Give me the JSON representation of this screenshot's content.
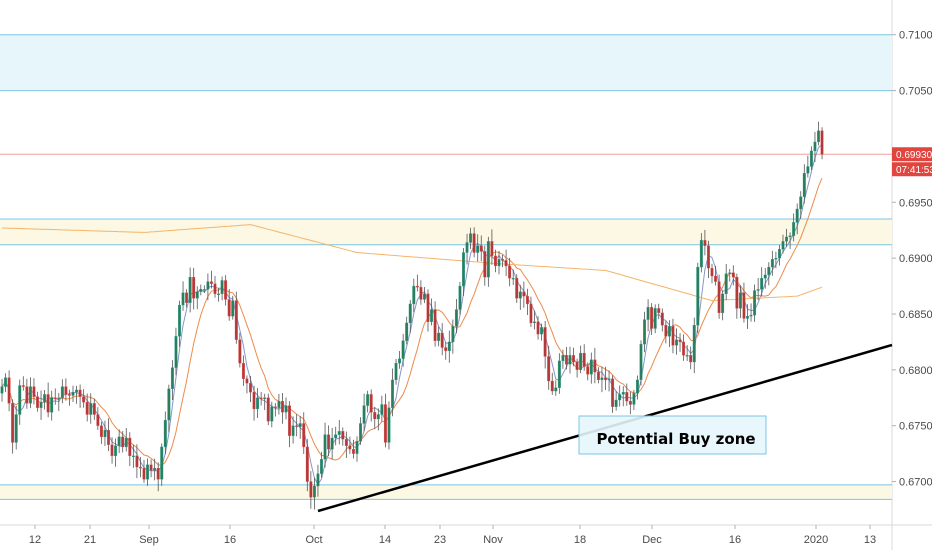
{
  "chart_data": {
    "type": "candlestick",
    "title": "",
    "xlabel": "",
    "ylabel": "",
    "ylim": [
      0.6662,
      0.7117
    ],
    "y_ticks": [
      "0.71000",
      "0.70500",
      "0.69930",
      "0.69500",
      "0.69000",
      "0.68500",
      "0.68000",
      "0.67500",
      "0.67000"
    ],
    "x_ticks": [
      "12",
      "21",
      "Sep",
      "16",
      "Oct",
      "14",
      "23",
      "Nov",
      "18",
      "Dec",
      "16",
      "2020",
      "13"
    ],
    "last_price": "0.69930",
    "countdown": "07:41:53",
    "annotation": "Potential Buy zone",
    "series_close": [
      0.6785,
      0.6793,
      0.677,
      0.6735,
      0.676,
      0.6786,
      0.6785,
      0.677,
      0.6785,
      0.6776,
      0.6766,
      0.6771,
      0.6778,
      0.6762,
      0.6775,
      0.6774,
      0.6775,
      0.6785,
      0.6778,
      0.6777,
      0.678,
      0.6782,
      0.6776,
      0.6771,
      0.676,
      0.677,
      0.676,
      0.675,
      0.674,
      0.6746,
      0.6733,
      0.6723,
      0.6732,
      0.674,
      0.6731,
      0.6739,
      0.6723,
      0.6723,
      0.6713,
      0.6712,
      0.6702,
      0.6715,
      0.671,
      0.6712,
      0.6702,
      0.6731,
      0.6755,
      0.6783,
      0.6802,
      0.683,
      0.6858,
      0.6869,
      0.686,
      0.6883,
      0.6864,
      0.687,
      0.6872,
      0.6872,
      0.6879,
      0.6877,
      0.6868,
      0.6868,
      0.688,
      0.6863,
      0.6848,
      0.6862,
      0.6827,
      0.6806,
      0.6792,
      0.6788,
      0.678,
      0.6765,
      0.6775,
      0.6774,
      0.6775,
      0.6754,
      0.6767,
      0.6766,
      0.6772,
      0.6762,
      0.6768,
      0.6741,
      0.675,
      0.6749,
      0.6752,
      0.6731,
      0.67,
      0.6686,
      0.6696,
      0.6707,
      0.672,
      0.6742,
      0.6729,
      0.6739,
      0.6742,
      0.6745,
      0.6738,
      0.6732,
      0.6729,
      0.6725,
      0.6736,
      0.6752,
      0.6768,
      0.6778,
      0.6762,
      0.6756,
      0.676,
      0.6769,
      0.6735,
      0.6766,
      0.6791,
      0.6806,
      0.681,
      0.6826,
      0.6842,
      0.6859,
      0.6875,
      0.6874,
      0.6863,
      0.6868,
      0.6843,
      0.6854,
      0.6826,
      0.6833,
      0.682,
      0.6817,
      0.6825,
      0.6839,
      0.6854,
      0.6875,
      0.6905,
      0.6914,
      0.6922,
      0.6905,
      0.6911,
      0.6906,
      0.6883,
      0.6915,
      0.6902,
      0.6893,
      0.6899,
      0.6898,
      0.6893,
      0.6882,
      0.6882,
      0.6864,
      0.687,
      0.6866,
      0.6859,
      0.6842,
      0.6843,
      0.6832,
      0.6838,
      0.6812,
      0.679,
      0.6781,
      0.6784,
      0.6808,
      0.6813,
      0.6805,
      0.6813,
      0.6807,
      0.68,
      0.6815,
      0.6803,
      0.6796,
      0.6809,
      0.6798,
      0.6791,
      0.6793,
      0.6791,
      0.6792,
      0.6767,
      0.6773,
      0.6778,
      0.678,
      0.6772,
      0.6769,
      0.6779,
      0.6791,
      0.6823,
      0.6845,
      0.6856,
      0.6837,
      0.6855,
      0.6851,
      0.684,
      0.683,
      0.6839,
      0.6822,
      0.6827,
      0.6825,
      0.6813,
      0.6813,
      0.6807,
      0.684,
      0.6892,
      0.6916,
      0.6911,
      0.6891,
      0.6884,
      0.6879,
      0.6851,
      0.6868,
      0.6886,
      0.6887,
      0.6883,
      0.6855,
      0.6869,
      0.6846,
      0.6848,
      0.6849,
      0.6871,
      0.6872,
      0.6882,
      0.6885,
      0.6892,
      0.6899,
      0.69,
      0.6908,
      0.6915,
      0.6919,
      0.692,
      0.6932,
      0.6944,
      0.6955,
      0.6976,
      0.6982,
      0.6996,
      0.7004,
      0.7014,
      0.6993
    ],
    "moving_averages": [
      {
        "name": "",
        "color": "#8a96c9"
      },
      {
        "name": "",
        "color": "#ee8a4a"
      },
      {
        "name": "",
        "color": "#f5b36a"
      }
    ],
    "resistance_zones": [
      [
        0.705,
        0.71
      ],
      [
        0.6912,
        0.6935
      ],
      [
        0.6684,
        0.6697
      ]
    ],
    "support_line": {
      "from": [
        "Oct",
        0.6672
      ],
      "to": [
        "2020+",
        0.6815
      ]
    }
  }
}
